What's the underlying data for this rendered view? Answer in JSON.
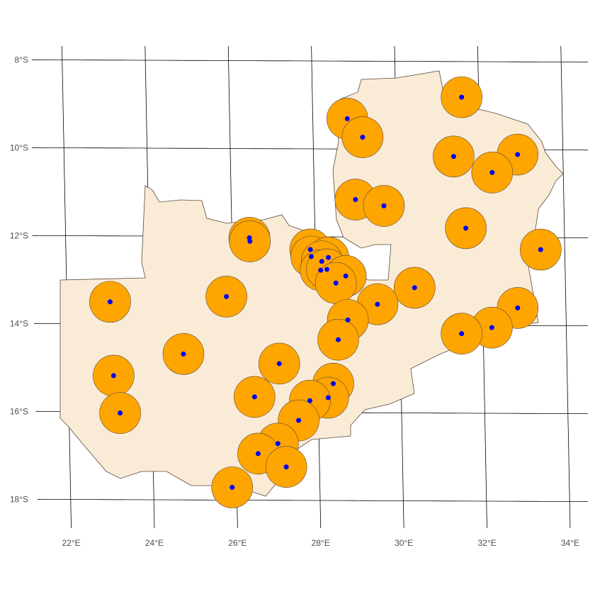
{
  "map": {
    "lat_ticks": [
      {
        "value": -8,
        "label": "8°S"
      },
      {
        "value": -10,
        "label": "10°S"
      },
      {
        "value": -12,
        "label": "12°S"
      },
      {
        "value": -14,
        "label": "14°S"
      },
      {
        "value": -16,
        "label": "16°S"
      },
      {
        "value": -18,
        "label": "18°S"
      }
    ],
    "lon_ticks": [
      {
        "value": 22,
        "label": "22°E"
      },
      {
        "value": 24,
        "label": "24°E"
      },
      {
        "value": 26,
        "label": "26°E"
      },
      {
        "value": 28,
        "label": "28°E"
      },
      {
        "value": 30,
        "label": "30°E"
      },
      {
        "value": 32,
        "label": "32°E"
      },
      {
        "value": 34,
        "label": "34°E"
      }
    ],
    "land_color": "#FAEBD7",
    "buffer_color": "#FFA500",
    "point_color": "#0000FF",
    "points": {
      "lon": [
        31.59,
        28.83,
        29.19,
        31.37,
        32.91,
        32.29,
        28.99,
        29.67,
        31.63,
        33.42,
        26.42,
        26.43,
        27.88,
        27.9,
        28.31,
        28.15,
        28.12,
        28.27,
        28.72,
        28.48,
        23.04,
        25.84,
        30.37,
        29.47,
        28.75,
        32.84,
        32.21,
        31.48,
        28.51,
        24.78,
        27.08,
        23.09,
        28.37,
        28.24,
        26.47,
        27.8,
        23.23,
        27.52,
        27.01,
        26.53,
        27.2,
        25.89
      ],
      "lat": [
        -8.81,
        -9.31,
        -9.73,
        -10.16,
        -10.11,
        -10.52,
        -11.15,
        -11.29,
        -11.79,
        -12.27,
        -12.03,
        -12.11,
        -12.29,
        -12.45,
        -12.47,
        -12.56,
        -12.76,
        -12.74,
        -12.89,
        -13.05,
        -13.5,
        -13.37,
        -13.15,
        -13.53,
        -13.89,
        -13.6,
        -14.05,
        -14.19,
        -14.34,
        -14.68,
        -14.89,
        -15.18,
        -15.34,
        -15.66,
        -15.65,
        -15.73,
        -16.03,
        -16.18,
        -16.71,
        -16.94,
        -17.24,
        -17.71
      ]
    }
  }
}
